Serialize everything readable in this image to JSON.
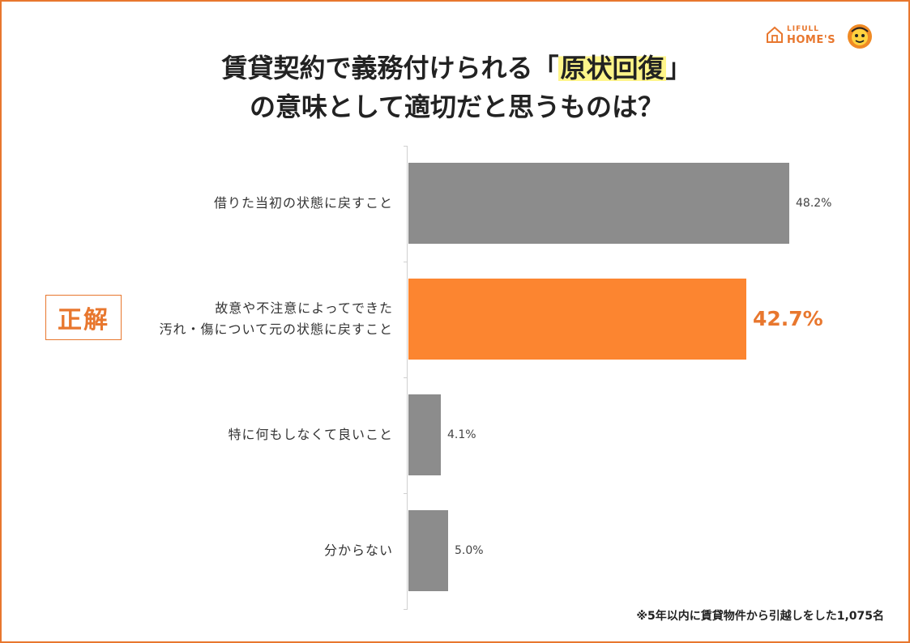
{
  "brand": {
    "small": "LIFULL",
    "big": "HOME'S"
  },
  "title": {
    "line1_pre": "賃貸契約で義務付けられる「",
    "line1_highlight": "原状回復",
    "line1_post": "」",
    "line2": "の意味として適切だと思うものは？"
  },
  "badge": {
    "label": "正解"
  },
  "footnote": "※5年以内に賃貸物件から引越しをした1,075名",
  "colors": {
    "accent": "#e8772e",
    "highlight_bar": "#fc8530",
    "default_bar": "#8c8c8c",
    "title_highlight": "#fff58a",
    "frame": "#e8772e"
  },
  "chart_data": {
    "type": "bar",
    "orientation": "horizontal",
    "categories": [
      [
        "借りた当初の状態に戻すこと"
      ],
      [
        "故意や不注意によってできた",
        "汚れ・傷について元の状態に戻すこと"
      ],
      [
        "特に何もしなくて良いこと"
      ],
      [
        "分からない"
      ]
    ],
    "values": [
      48.2,
      42.7,
      4.1,
      5.0
    ],
    "value_labels": [
      "48.2%",
      "42.7%",
      "4.1%",
      "5.0%"
    ],
    "highlight_index": 1,
    "xlim": [
      0,
      50
    ],
    "xlabel": "",
    "ylabel": "",
    "grid": false,
    "legend": "none"
  }
}
